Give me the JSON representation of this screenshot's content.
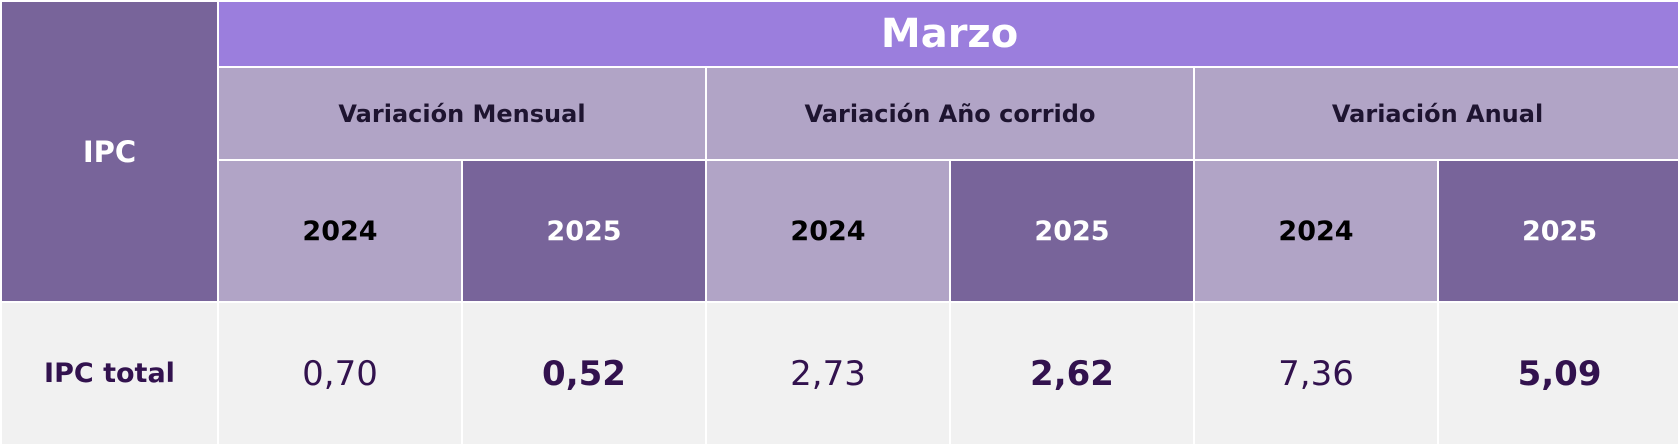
{
  "table": {
    "corner_label": "IPC",
    "month": "Marzo",
    "groups": [
      {
        "label": "Variación Mensual"
      },
      {
        "label": "Variación Año corrido"
      },
      {
        "label": "Variación Anual"
      }
    ],
    "years": [
      "2024",
      "2025",
      "2024",
      "2025",
      "2024",
      "2025"
    ],
    "rows": [
      {
        "label": "IPC total",
        "values": [
          "0,70",
          "0,52",
          "2,73",
          "2,62",
          "7,36",
          "5,09"
        ]
      }
    ]
  },
  "colors": {
    "header_dark": "#78649a",
    "header_month": "#9b7edd",
    "header_light": "#b1a4c6",
    "body_background": "#f1f1f1",
    "body_text": "#32124e"
  }
}
